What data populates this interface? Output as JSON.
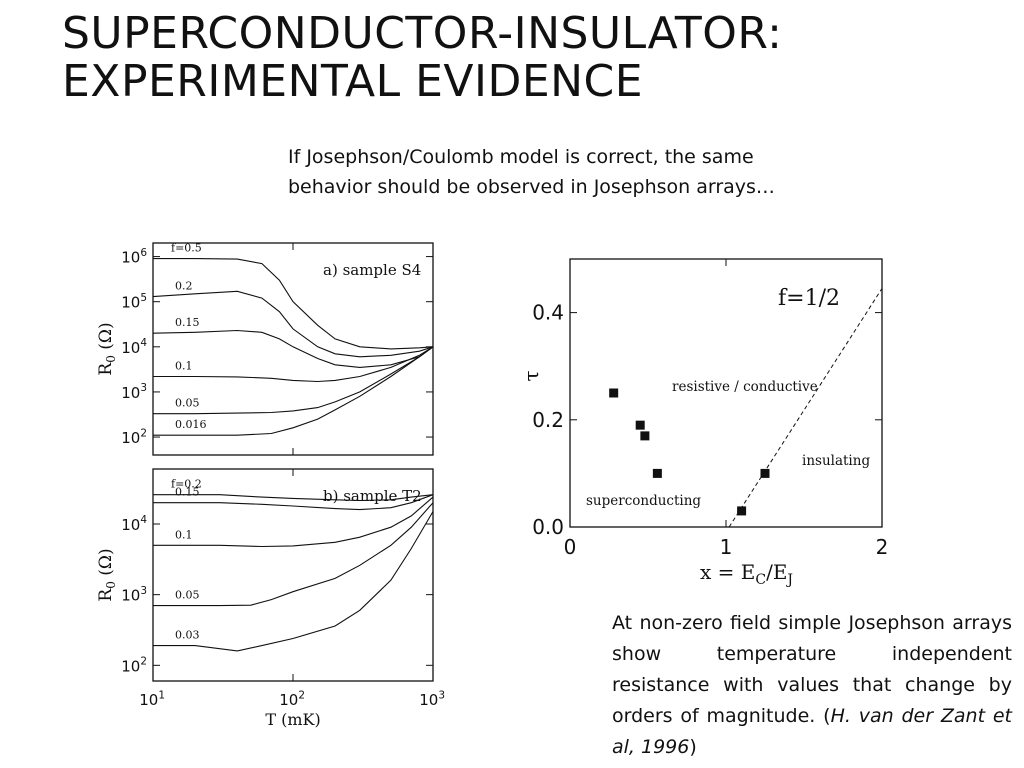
{
  "slide": {
    "title_line1": "SUPERCONDUCTOR-INSULATOR:",
    "title_line2": "EXPERIMENTAL EVIDENCE",
    "intro_line1": "If Josephson/Coulomb model is correct, the same",
    "intro_line2": "behavior should be observed in Josephson arrays…",
    "caption_text": "At non-zero field simple Josephson arrays show temperature independent resistance with values that change by orders of magnitude. (",
    "caption_citation": "H. van der Zant  et al, 1996",
    "caption_close": ")"
  },
  "chart_data": [
    {
      "type": "line",
      "title": "a) sample S4",
      "ylabel": "R0 (Ω)",
      "x_scale": "log",
      "y_scale": "log",
      "xlim": [
        10,
        1000
      ],
      "ylim": [
        40,
        2000000
      ],
      "y_ticks": [
        "10^6",
        "10^5",
        "10^4",
        "10^3",
        "10^2"
      ],
      "series": [
        {
          "name": "f=0.5",
          "x": [
            10,
            20,
            40,
            60,
            80,
            100,
            150,
            200,
            300,
            500,
            800,
            1000
          ],
          "y": [
            900000,
            900000,
            880000,
            700000,
            300000,
            100000,
            30000,
            15000,
            10000,
            9000,
            9500,
            10000
          ]
        },
        {
          "name": "0.2",
          "x": [
            10,
            20,
            40,
            60,
            80,
            100,
            150,
            200,
            300,
            500,
            800,
            1000
          ],
          "y": [
            130000,
            150000,
            170000,
            120000,
            60000,
            25000,
            10000,
            7000,
            6000,
            6500,
            8000,
            10000
          ]
        },
        {
          "name": "0.15",
          "x": [
            10,
            20,
            40,
            60,
            80,
            100,
            150,
            200,
            300,
            500,
            800,
            1000
          ],
          "y": [
            20000,
            21000,
            23000,
            21000,
            15000,
            10000,
            5500,
            4000,
            3500,
            4000,
            6000,
            10000
          ]
        },
        {
          "name": "0.1",
          "x": [
            10,
            20,
            40,
            70,
            100,
            150,
            200,
            300,
            500,
            800,
            1000
          ],
          "y": [
            2200,
            2200,
            2150,
            2000,
            1800,
            1700,
            1800,
            2200,
            3500,
            6500,
            10000
          ]
        },
        {
          "name": "0.05",
          "x": [
            10,
            20,
            40,
            70,
            100,
            150,
            200,
            300,
            500,
            800,
            1000
          ],
          "y": [
            330,
            330,
            340,
            350,
            380,
            450,
            600,
            1000,
            2500,
            6000,
            10000
          ]
        },
        {
          "name": "0.016",
          "x": [
            10,
            20,
            40,
            70,
            100,
            150,
            200,
            300,
            500,
            800,
            1000
          ],
          "y": [
            110,
            110,
            110,
            120,
            160,
            250,
            400,
            800,
            2200,
            6000,
            10000
          ]
        }
      ]
    },
    {
      "type": "line",
      "title": "b) sample T2",
      "xlabel": "T (mK)",
      "ylabel": "R0 (Ω)",
      "x_scale": "log",
      "y_scale": "log",
      "xlim": [
        10,
        1000
      ],
      "ylim": [
        60,
        60000
      ],
      "x_ticks": [
        "10^1",
        "10^2",
        "10^3"
      ],
      "y_ticks": [
        "10^4",
        "10^3",
        "10^2"
      ],
      "series": [
        {
          "name": "f=0.2",
          "x": [
            10,
            30,
            60,
            100,
            200,
            300,
            500,
            700,
            1000
          ],
          "y": [
            26000,
            26000,
            24000,
            23000,
            22000,
            21500,
            22000,
            24000,
            26000
          ]
        },
        {
          "name": "0.15",
          "x": [
            10,
            30,
            60,
            100,
            200,
            300,
            500,
            700,
            1000
          ],
          "y": [
            20000,
            20000,
            19000,
            18000,
            16500,
            16000,
            17000,
            20000,
            26000
          ]
        },
        {
          "name": "0.1",
          "x": [
            10,
            30,
            60,
            100,
            200,
            300,
            500,
            700,
            1000
          ],
          "y": [
            5000,
            5000,
            4800,
            4900,
            5500,
            6500,
            9000,
            13000,
            24000
          ]
        },
        {
          "name": "0.05",
          "x": [
            10,
            30,
            50,
            70,
            100,
            200,
            300,
            500,
            700,
            1000
          ],
          "y": [
            700,
            700,
            710,
            850,
            1100,
            1700,
            2600,
            5000,
            9000,
            20000
          ]
        },
        {
          "name": "0.03",
          "x": [
            10,
            20,
            40,
            60,
            100,
            200,
            300,
            500,
            700,
            1000
          ],
          "y": [
            190,
            190,
            160,
            190,
            240,
            360,
            600,
            1600,
            4500,
            15000
          ]
        }
      ]
    },
    {
      "type": "scatter",
      "title": "f=1/2",
      "xlabel": "x = EC/EJ",
      "ylabel": "τ",
      "xlim": [
        0,
        2
      ],
      "ylim": [
        0,
        0.5
      ],
      "x_ticks": [
        "0",
        "1",
        "2"
      ],
      "y_ticks": [
        "0.0",
        "0.2",
        "0.4"
      ],
      "points": [
        {
          "x": 0.28,
          "y": 0.25
        },
        {
          "x": 0.45,
          "y": 0.19
        },
        {
          "x": 0.48,
          "y": 0.17
        },
        {
          "x": 0.56,
          "y": 0.1
        },
        {
          "x": 1.1,
          "y": 0.03
        },
        {
          "x": 1.25,
          "y": 0.1
        }
      ],
      "boundary_line": {
        "x": [
          1.02,
          2.0
        ],
        "y": [
          0.0,
          0.445
        ]
      },
      "regions": [
        "resistive / conductive",
        "insulating",
        "superconducting"
      ]
    }
  ]
}
